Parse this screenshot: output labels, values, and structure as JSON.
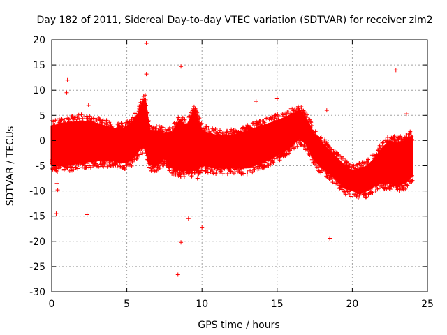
{
  "chart_data": {
    "type": "scatter",
    "title": "Day 182 of 2011, Sidereal Day-to-day VTEC variation (SDTVAR) for receiver zim2",
    "xlabel": "GPS time / hours",
    "ylabel": "SDTVAR / TECUs",
    "xlim": [
      0,
      25
    ],
    "ylim": [
      -30,
      20
    ],
    "x_ticks": [
      "0",
      "5",
      "10",
      "15",
      "20",
      "25"
    ],
    "x_tick_values": [
      0,
      5,
      10,
      15,
      20,
      25
    ],
    "y_ticks": [
      "20",
      "15",
      "10",
      "5",
      "0",
      "-5",
      "-10",
      "-15",
      "-20",
      "-25",
      "-30"
    ],
    "y_tick_values": [
      20,
      15,
      10,
      5,
      0,
      -5,
      -10,
      -15,
      -20,
      -25,
      -30
    ],
    "grid": true,
    "marker": "+",
    "color": "#ff0000",
    "envelope": {
      "description_hours": "approximate upper/lower bound of the dense point band",
      "x": [
        0.0,
        1.0,
        2.0,
        3.0,
        4.0,
        4.8,
        5.3,
        5.8,
        6.2,
        6.5,
        7.0,
        7.5,
        8.0,
        8.5,
        9.0,
        9.5,
        10.0,
        11.0,
        12.0,
        13.0,
        14.0,
        15.0,
        15.8,
        16.5,
        17.0,
        17.5,
        18.0,
        18.5,
        19.0,
        19.5,
        20.0,
        20.5,
        21.0,
        21.5,
        22.0,
        22.5,
        23.0,
        23.5,
        24.0
      ],
      "upper": [
        3,
        3.5,
        4,
        3.5,
        2.5,
        2.5,
        3.5,
        5.5,
        8.5,
        2,
        2,
        1.5,
        1.5,
        4,
        3,
        6,
        2,
        1,
        1,
        2,
        3,
        4,
        5,
        6,
        4,
        1,
        -0.5,
        -2,
        -3.5,
        -5,
        -6,
        -5.5,
        -5,
        -3.5,
        -1.5,
        0,
        -0.5,
        0,
        1
      ],
      "lower": [
        -5,
        -5,
        -4.5,
        -4,
        -4,
        -4.5,
        -4,
        -2,
        -1,
        -5,
        -5,
        -3.5,
        -5.5,
        -6,
        -6,
        -6,
        -5,
        -5.5,
        -5.5,
        -5.5,
        -4.5,
        -3,
        -1.5,
        0.5,
        -1,
        -4,
        -5.5,
        -6.5,
        -8,
        -9.5,
        -10,
        -10.5,
        -10,
        -9,
        -8.5,
        -8.5,
        -9,
        -8.5,
        -7
      ]
    },
    "outliers": [
      {
        "x": 0.3,
        "y": -14.5
      },
      {
        "x": 0.35,
        "y": -8.5
      },
      {
        "x": 0.4,
        "y": -9.8
      },
      {
        "x": 1.05,
        "y": 12
      },
      {
        "x": 1.0,
        "y": 9.5
      },
      {
        "x": 2.35,
        "y": -14.7
      },
      {
        "x": 2.45,
        "y": 7
      },
      {
        "x": 6.3,
        "y": 19.3
      },
      {
        "x": 6.3,
        "y": 13.2
      },
      {
        "x": 8.4,
        "y": -26.6
      },
      {
        "x": 8.6,
        "y": -20.2
      },
      {
        "x": 8.6,
        "y": 14.7
      },
      {
        "x": 9.1,
        "y": -15.5
      },
      {
        "x": 10.0,
        "y": -17.2
      },
      {
        "x": 13.6,
        "y": 7.8
      },
      {
        "x": 15.0,
        "y": 8.3
      },
      {
        "x": 18.5,
        "y": -19.4
      },
      {
        "x": 22.9,
        "y": 14
      },
      {
        "x": 23.6,
        "y": 5.3
      },
      {
        "x": 18.3,
        "y": 6
      },
      {
        "x": 9.7,
        "y": -7.5
      }
    ]
  }
}
